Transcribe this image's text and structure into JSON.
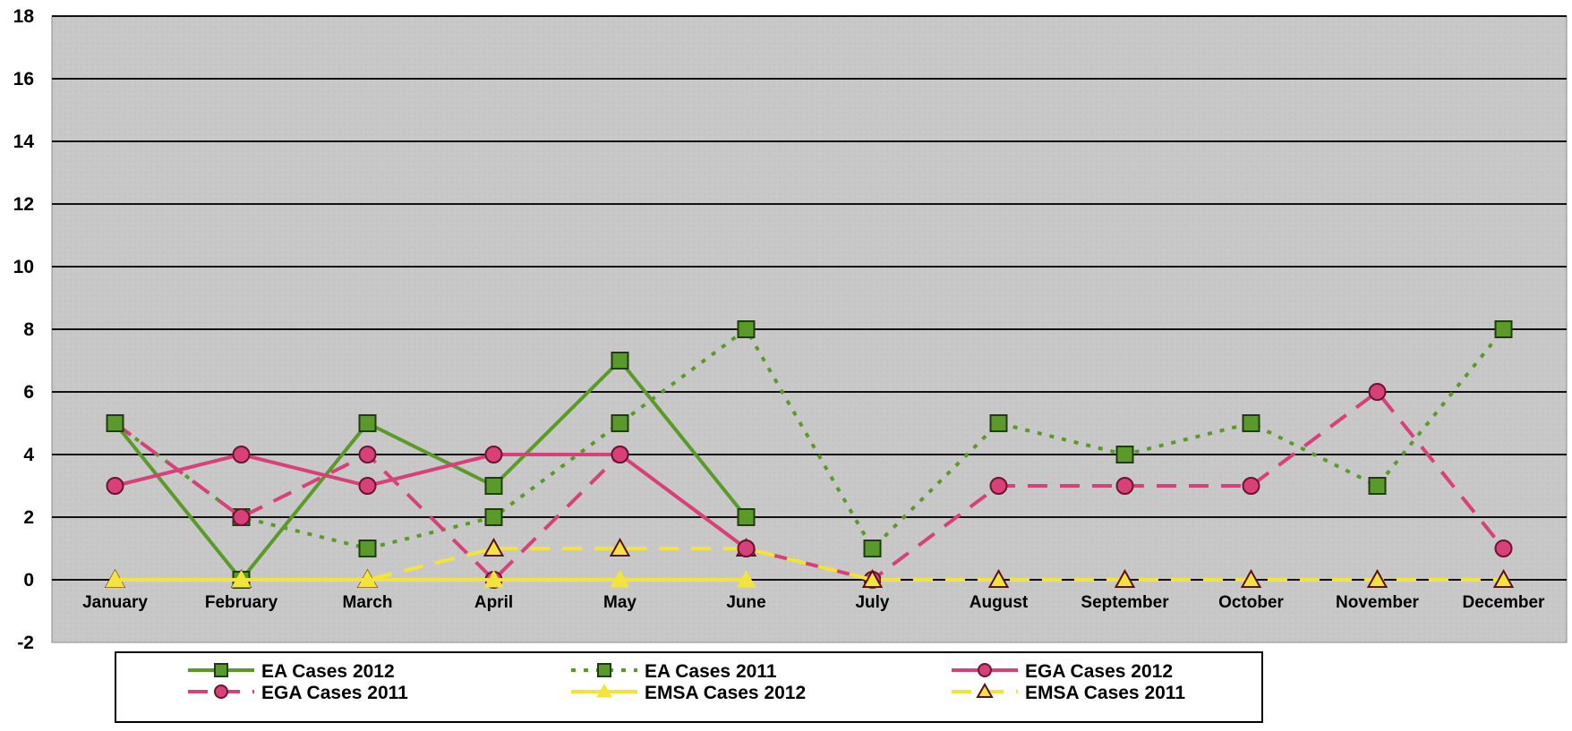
{
  "chart_data": {
    "type": "line",
    "title": "",
    "xlabel": "",
    "ylabel": "",
    "ylim": [
      -2,
      18
    ],
    "yticks": [
      -2,
      0,
      2,
      4,
      6,
      8,
      10,
      12,
      14,
      16,
      18
    ],
    "grid": true,
    "legend_position": "bottom",
    "categories": [
      "January",
      "February",
      "March",
      "April",
      "May",
      "June",
      "July",
      "August",
      "September",
      "October",
      "November",
      "December"
    ],
    "series": [
      {
        "name": "EA Cases 2012",
        "values": [
          5,
          0,
          5,
          3,
          7,
          2,
          null,
          null,
          null,
          null,
          null,
          null
        ],
        "color": "#5a9a28",
        "style": "solid",
        "marker": "square"
      },
      {
        "name": "EA Cases 2011",
        "values": [
          5,
          2,
          1,
          2,
          5,
          8,
          1,
          5,
          4,
          5,
          3,
          8
        ],
        "color": "#5a9a28",
        "style": "dotted",
        "marker": "square"
      },
      {
        "name": "EGA Cases 2012",
        "values": [
          3,
          4,
          3,
          4,
          4,
          1,
          null,
          null,
          null,
          null,
          null,
          null
        ],
        "color": "#d9407a",
        "style": "solid",
        "marker": "circle"
      },
      {
        "name": "EGA Cases 2011",
        "values": [
          5,
          2,
          4,
          0,
          4,
          1,
          0,
          3,
          3,
          3,
          6,
          1
        ],
        "color": "#d9407a",
        "style": "dashed",
        "marker": "circle"
      },
      {
        "name": "EMSA Cases 2012",
        "values": [
          0,
          0,
          0,
          0,
          0,
          0,
          null,
          null,
          null,
          null,
          null,
          null
        ],
        "color": "#f2e43a",
        "style": "solid",
        "marker": "triangle-filled"
      },
      {
        "name": "EMSA Cases 2011",
        "values": [
          0,
          0,
          0,
          1,
          1,
          1,
          0,
          0,
          0,
          0,
          0,
          0
        ],
        "color": "#f2e43a",
        "style": "dashed",
        "marker": "triangle-open"
      }
    ]
  }
}
